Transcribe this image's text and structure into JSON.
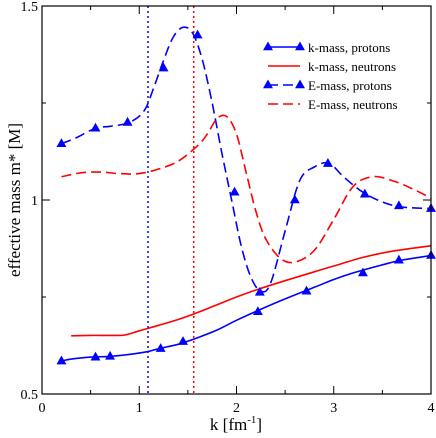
{
  "chart_data": {
    "type": "line",
    "xlabel": "k [fm",
    "xlabel_sup": "-1",
    "xlabel_close": "]",
    "ylabel": "effective mass m* [M]",
    "xlim": [
      0,
      4
    ],
    "ylim": [
      0.5,
      1.5
    ],
    "x_ticks": [
      0,
      1,
      2,
      3,
      4
    ],
    "y_ticks": [
      0.5,
      1,
      1.5
    ],
    "x_tick_labels": [
      "0",
      "1",
      "2",
      "3",
      "4"
    ],
    "y_tick_labels": [
      "0.5",
      "1",
      "1.5"
    ],
    "grid": false,
    "legend_position": "top-right",
    "vertical_lines": [
      {
        "x": 1.09,
        "color": "#0000ff",
        "style": "dotted"
      },
      {
        "x": 1.56,
        "color": "#ff0000",
        "style": "dotted"
      }
    ],
    "series": [
      {
        "name": "k-mass, protons",
        "color": "#0000ff",
        "style": "solid",
        "marker": "triangle",
        "x": [
          0.2,
          0.3,
          0.5,
          0.7,
          0.9,
          1.1,
          1.2,
          1.4,
          1.6,
          1.8,
          2.0,
          2.2,
          2.5,
          2.8,
          3.0,
          3.2,
          3.5,
          3.7,
          4.0
        ],
        "y": [
          0.585,
          0.59,
          0.595,
          0.597,
          0.602,
          0.61,
          0.617,
          0.628,
          0.645,
          0.665,
          0.69,
          0.713,
          0.745,
          0.775,
          0.795,
          0.812,
          0.833,
          0.845,
          0.857
        ],
        "marker_x": [
          0.2,
          0.55,
          0.7,
          1.22,
          1.45,
          2.22,
          2.72,
          3.3,
          3.67,
          4.0
        ],
        "marker_y": [
          0.585,
          0.595,
          0.597,
          0.617,
          0.635,
          0.712,
          0.765,
          0.812,
          0.845,
          0.857
        ]
      },
      {
        "name": "k-mass, neutrons",
        "color": "#ff0000",
        "style": "solid",
        "marker": "none",
        "x": [
          0.3,
          0.5,
          0.7,
          0.85,
          1.0,
          1.2,
          1.4,
          1.6,
          1.8,
          2.0,
          2.2,
          2.5,
          2.8,
          3.0,
          3.3,
          3.6,
          4.0
        ],
        "y": [
          0.65,
          0.651,
          0.651,
          0.652,
          0.663,
          0.677,
          0.692,
          0.71,
          0.73,
          0.75,
          0.768,
          0.792,
          0.815,
          0.83,
          0.852,
          0.868,
          0.882
        ]
      },
      {
        "name": "E-mass, protons",
        "color": "#0000ff",
        "style": "dashed",
        "marker": "triangle",
        "x": [
          0.2,
          0.35,
          0.55,
          0.7,
          0.9,
          1.05,
          1.15,
          1.25,
          1.35,
          1.45,
          1.55,
          1.65,
          1.75,
          1.85,
          1.95,
          2.05,
          2.15,
          2.25,
          2.35,
          2.5,
          2.65,
          2.8,
          2.95,
          3.1,
          3.3,
          3.5,
          3.7,
          4.0
        ],
        "y": [
          1.145,
          1.16,
          1.185,
          1.19,
          1.2,
          1.23,
          1.29,
          1.36,
          1.42,
          1.445,
          1.43,
          1.36,
          1.25,
          1.12,
          1.0,
          0.88,
          0.8,
          0.765,
          0.785,
          0.92,
          1.05,
          1.085,
          1.095,
          1.06,
          1.02,
          0.995,
          0.982,
          0.978
        ],
        "marker_x": [
          0.2,
          0.55,
          0.88,
          1.25,
          1.6,
          1.98,
          2.24,
          2.6,
          2.94,
          3.32,
          3.67,
          4.0
        ],
        "marker_y": [
          1.145,
          1.185,
          1.2,
          1.34,
          1.425,
          1.02,
          0.762,
          1.0,
          1.094,
          1.015,
          0.985,
          0.978
        ]
      },
      {
        "name": "E-mass, neutrons",
        "color": "#ff0000",
        "style": "dashed",
        "marker": "none",
        "x": [
          0.2,
          0.4,
          0.6,
          0.8,
          1.0,
          1.2,
          1.4,
          1.6,
          1.7,
          1.8,
          1.9,
          2.0,
          2.1,
          2.2,
          2.3,
          2.45,
          2.6,
          2.8,
          3.0,
          3.2,
          3.4,
          3.6,
          3.8,
          4.0
        ],
        "y": [
          1.06,
          1.07,
          1.072,
          1.068,
          1.068,
          1.08,
          1.1,
          1.14,
          1.17,
          1.21,
          1.215,
          1.17,
          1.07,
          0.97,
          0.9,
          0.85,
          0.84,
          0.87,
          0.95,
          1.035,
          1.06,
          1.05,
          1.03,
          1.005
        ]
      }
    ]
  }
}
